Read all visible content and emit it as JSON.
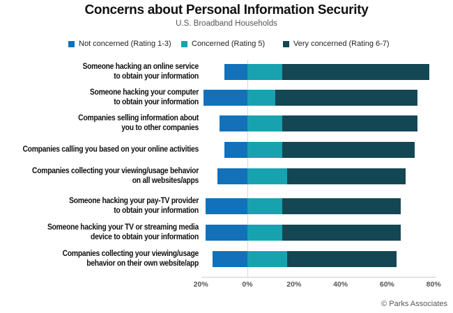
{
  "chart_data": {
    "type": "bar",
    "orientation": "horizontal",
    "stacked": true,
    "diverging": true,
    "title": "Concerns about Personal Information Security",
    "subtitle": "U.S. Broadband Households",
    "xlabel": "",
    "ylabel": "",
    "xlim": [
      -20,
      80
    ],
    "x_ticks": [
      "20%",
      "0%",
      "20%",
      "40%",
      "60%",
      "80%"
    ],
    "legend_position": "top",
    "grid": false,
    "categories": [
      "Someone hacking an online service to obtain your information",
      "Someone hacking your computer to obtain your information",
      "Companies selling information about you to other companies",
      "Companies calling you based on your online activities",
      "Companies collecting your viewing/usage behavior on all websites/apps",
      "Someone hacking your pay-TV provider to obtain your information",
      "Someone hacking your TV or streaming media device to obtain your information",
      "Companies collecting your viewing/usage behavior on their own website/app"
    ],
    "series": [
      {
        "name": "Not concerned (Rating 1-3)",
        "color": "#1271b9",
        "direction": "negative",
        "values": [
          10,
          19,
          12,
          10,
          13,
          18,
          18,
          15
        ]
      },
      {
        "name": "Concerned (Rating 5)",
        "color": "#18a2b0",
        "direction": "positive",
        "values": [
          15,
          12,
          15,
          15,
          17,
          15,
          15,
          17
        ]
      },
      {
        "name": "Very concerned (Rating 6-7)",
        "color": "#134753",
        "direction": "positive",
        "values": [
          63,
          61,
          58,
          57,
          51,
          51,
          51,
          47
        ]
      }
    ],
    "source": "© Parks Associates"
  },
  "header": {
    "title": "Concerns about Personal Information Security",
    "subtitle": "U.S. Broadband Households"
  },
  "legend": [
    {
      "label": "Not concerned (Rating 1-3)",
      "color": "#1271b9"
    },
    {
      "label": "Concerned (Rating 5)",
      "color": "#18a2b0"
    },
    {
      "label": "Very concerned (Rating 6-7)",
      "color": "#134753"
    }
  ],
  "rows": [
    {
      "line1": "Someone hacking an online service",
      "line2": "to obtain your information"
    },
    {
      "line1": "Someone hacking your computer",
      "line2": "to obtain your information"
    },
    {
      "line1": "Companies selling information about",
      "line2": "you to other companies"
    },
    {
      "line1": "Companies calling you based on your online activities",
      "line2": ""
    },
    {
      "line1": "Companies collecting your viewing/usage behavior",
      "line2": "on all websites/apps"
    },
    {
      "line1": "Someone hacking your pay-TV provider",
      "line2": "to obtain your information"
    },
    {
      "line1": "Someone hacking your TV or streaming media",
      "line2": "device to obtain your information"
    },
    {
      "line1": "Companies collecting your viewing/usage",
      "line2": "behavior on their own website/app"
    }
  ],
  "axis": {
    "ticks": [
      {
        "label": "20%",
        "value": -20
      },
      {
        "label": "0%",
        "value": 0
      },
      {
        "label": "20%",
        "value": 20
      },
      {
        "label": "40%",
        "value": 40
      },
      {
        "label": "60%",
        "value": 60
      },
      {
        "label": "80%",
        "value": 80
      }
    ]
  },
  "footer": {
    "credit": "© Parks Associates"
  }
}
